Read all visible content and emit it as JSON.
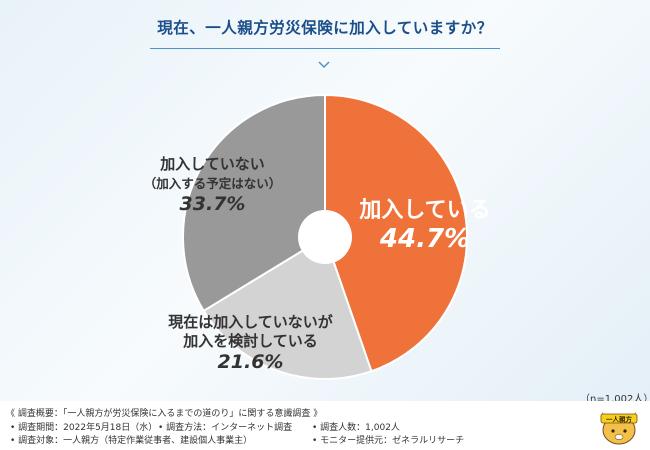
{
  "chart_data": {
    "type": "pie",
    "title": "現在、一人親方労災保険に加入していますか？",
    "slices": [
      {
        "label": "加入している",
        "value": 44.7,
        "value_text": "44.7%",
        "color": "#ef723b"
      },
      {
        "label": "現在は加入していないが加入を検討している",
        "value": 21.6,
        "value_text": "21.6%",
        "color": "#d3d3d3"
      },
      {
        "label": "加入していない（加入する予定はない）",
        "value": 33.7,
        "value_text": "33.7%",
        "color": "#999999"
      }
    ],
    "sample_note": "（n=1,002人）"
  },
  "labels": {
    "slice0_line1": "加入している",
    "slice0_pct": "44.7%",
    "slice1_line1": "現在は加入していないが",
    "slice1_line2": "加入を検討している",
    "slice1_pct": "21.6%",
    "slice2_line1": "加入していない",
    "slice2_line2": "（加入する予定はない）",
    "slice2_pct": "33.7%"
  },
  "footer": {
    "overview": "《 調査概要：「一人親方が労災保険に入るまでの道のり」に関する意識調査 》",
    "period": "• 調査期間：2022年5月18日（水）",
    "method": "• 調査方法：インターネット調査",
    "count": "• 調査人数：1,002人",
    "target": "• 調査対象：一人親方（特定作業従事者、建設個人事業主）",
    "provider": "• モニター提供元：ゼネラルリサーチ"
  },
  "logo": {
    "text": "一人親方",
    "icon": "mascot-dog-icon"
  }
}
